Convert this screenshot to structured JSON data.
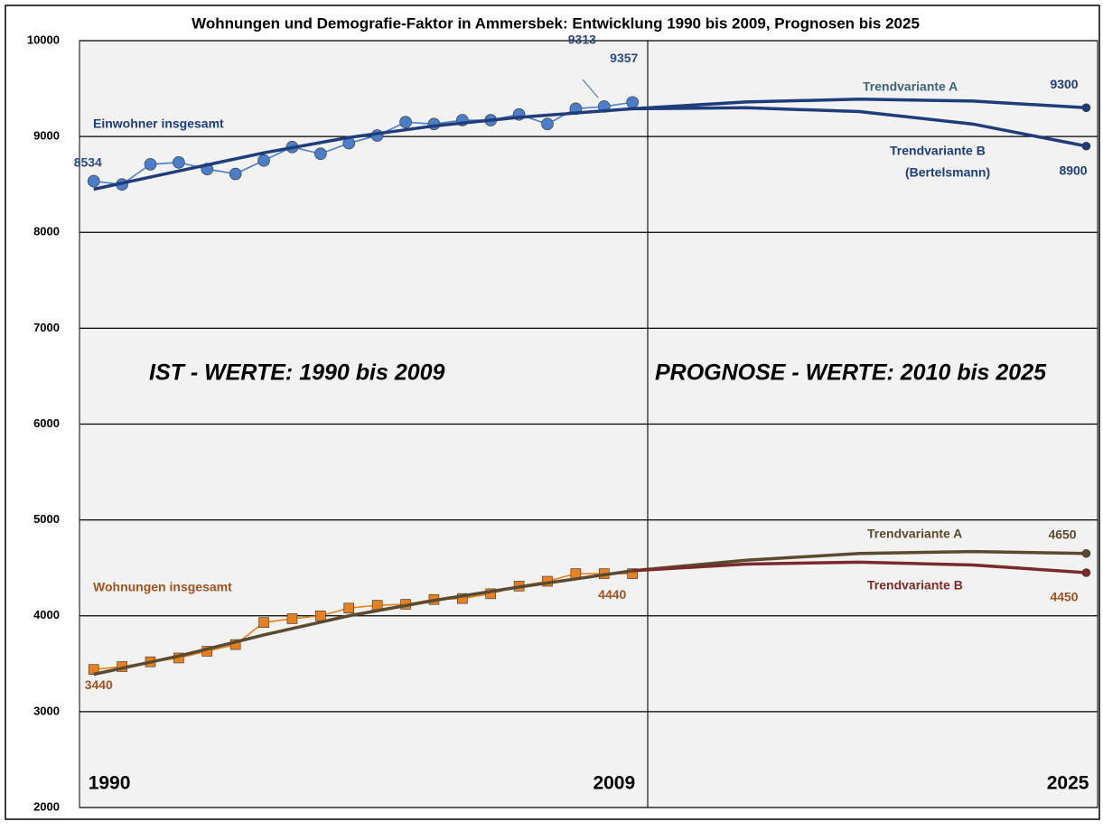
{
  "chart_data": {
    "type": "line",
    "title": "Wohnungen  und Demografie-Faktor in Ammersbek: Entwicklung 1990 bis 2009, Prognosen bis 2025",
    "xlim": [
      1989.5,
      2025.4
    ],
    "xticks": [
      1990,
      2009,
      2025
    ],
    "ylim": [
      2000,
      10000
    ],
    "yticks": [
      2000,
      3000,
      4000,
      5000,
      6000,
      7000,
      8000,
      9000,
      10000
    ],
    "grid": true,
    "annotations": [
      "IST - WERTE: 1990 bis 2009",
      "PROGNOSE - WERTE: 2010 bis 2025",
      "Trendvariante A",
      "Trendvariante B",
      "(Bertelsmann)",
      "Trendvariante A",
      "Trendvariante B"
    ],
    "series": [
      {
        "name": "Einwohner insgesamt",
        "color": "#4a7ec8",
        "marker": "circle",
        "x": [
          1990,
          1991,
          1992,
          1993,
          1994,
          1995,
          1996,
          1997,
          1998,
          1999,
          2000,
          2001,
          2002,
          2003,
          2004,
          2005,
          2006,
          2007,
          2008,
          2009
        ],
        "values": [
          8534,
          8500,
          8710,
          8730,
          8660,
          8610,
          8750,
          8890,
          8820,
          8930,
          9010,
          9150,
          9130,
          9170,
          9170,
          9230,
          9130,
          9290,
          9313,
          9357
        ]
      },
      {
        "color": "#1f3d7a",
        "x": [
          1990,
          1993,
          1996,
          1999,
          2002,
          2005,
          2009,
          2013,
          2017,
          2021,
          2025
        ],
        "values": [
          8450,
          8640,
          8830,
          8990,
          9110,
          9200,
          9290,
          9360,
          9390,
          9370,
          9300
        ]
      },
      {
        "color": "#1f3d7a",
        "x": [
          2009,
          2013,
          2017,
          2021,
          2025
        ],
        "values": [
          9290,
          9300,
          9260,
          9130,
          8900
        ]
      },
      {
        "name": "Wohnungen insgesamt",
        "color": "#e8801e",
        "marker": "square",
        "x": [
          1990,
          1991,
          1992,
          1993,
          1994,
          1995,
          1996,
          1997,
          1998,
          1999,
          2000,
          2001,
          2002,
          2003,
          2004,
          2005,
          2006,
          2007,
          2008,
          2009
        ],
        "values": [
          3440,
          3470,
          3520,
          3560,
          3630,
          3700,
          3930,
          3970,
          4000,
          4080,
          4110,
          4120,
          4170,
          4180,
          4230,
          4310,
          4360,
          4440,
          4440,
          4440
        ]
      },
      {
        "color": "#5a4a30",
        "x": [
          1990,
          1993,
          1996,
          1999,
          2002,
          2005,
          2009,
          2013,
          2017,
          2021,
          2025
        ],
        "values": [
          3390,
          3580,
          3800,
          4000,
          4160,
          4300,
          4470,
          4580,
          4650,
          4670,
          4650
        ]
      },
      {
        "color": "#7a2a2a",
        "x": [
          2009,
          2013,
          2017,
          2021,
          2025
        ],
        "values": [
          4470,
          4540,
          4560,
          4530,
          4450
        ]
      }
    ]
  }
}
